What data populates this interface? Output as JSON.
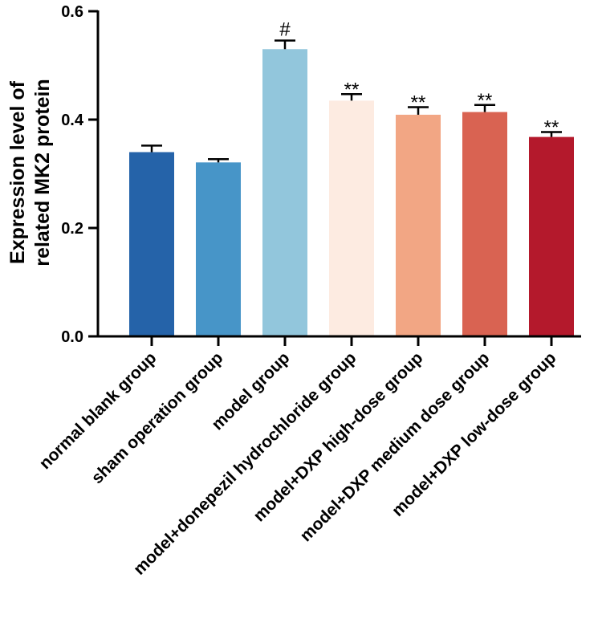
{
  "chart_data": {
    "type": "bar",
    "title": "",
    "xlabel": "",
    "ylabel": [
      "Expression level of",
      "related MK2 protein"
    ],
    "ylim": [
      0,
      0.6
    ],
    "yticks": [
      0.0,
      0.2,
      0.4,
      0.6
    ],
    "ytick_labels": [
      "0.0",
      "0.2",
      "0.4",
      "0.6"
    ],
    "categories": [
      "normal blank group",
      "sham operation group",
      "model group",
      "model+donepezil hydrochloride group",
      "model+DXP high-dose group",
      "model+DXP medium dose group",
      "model+DXP low-dose group"
    ],
    "values": [
      0.34,
      0.321,
      0.53,
      0.435,
      0.409,
      0.414,
      0.368
    ],
    "errors": [
      0.012,
      0.006,
      0.016,
      0.012,
      0.014,
      0.013,
      0.009
    ],
    "annotations": [
      "",
      "",
      "#",
      "**",
      "**",
      "**",
      "**"
    ],
    "colors": [
      "#2563a9",
      "#4795c8",
      "#92c6dc",
      "#fdebe1",
      "#f2a684",
      "#d96352",
      "#b4192c"
    ]
  }
}
